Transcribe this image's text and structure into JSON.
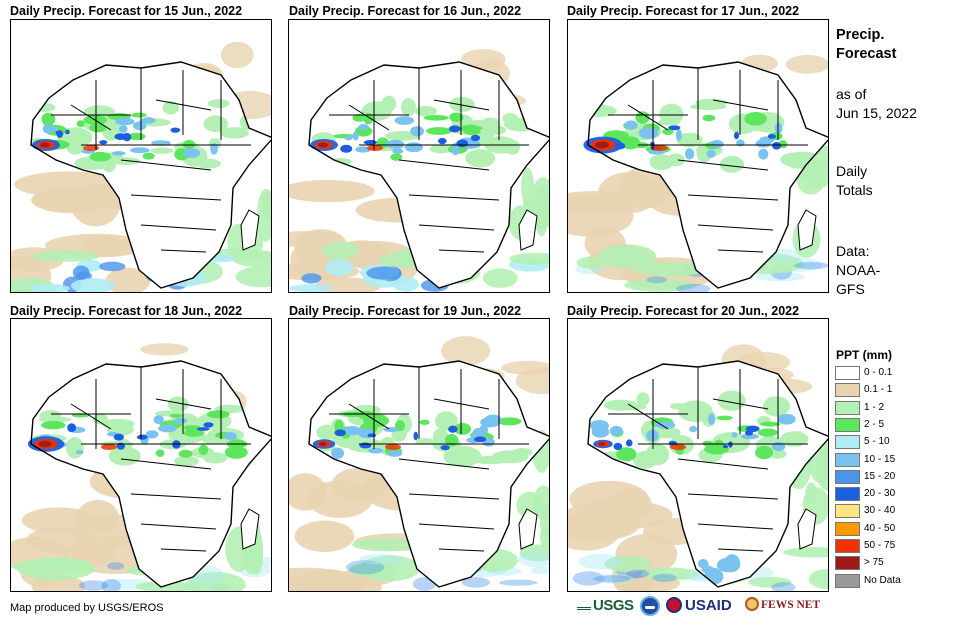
{
  "panels": [
    {
      "title": "Daily Precip. Forecast for 15 Jun., 2022"
    },
    {
      "title": "Daily Precip. Forecast for 16 Jun., 2022"
    },
    {
      "title": "Daily Precip. Forecast for 17 Jun., 2022"
    },
    {
      "title": "Daily Precip. Forecast for 18 Jun., 2022"
    },
    {
      "title": "Daily Precip. Forecast for 19 Jun., 2022"
    },
    {
      "title": "Daily Precip. Forecast for 20 Jun., 2022"
    }
  ],
  "side": {
    "title_line1": "Precip.",
    "title_line2": "Forecast",
    "asof_line1": "as of",
    "asof_line2": "Jun 15, 2022",
    "totals_line1": "Daily",
    "totals_line2": "Totals",
    "data_line1": "Data:",
    "data_line2": "NOAA-",
    "data_line3": "GFS"
  },
  "legend": {
    "title": "PPT (mm)",
    "items": [
      {
        "label": "0 - 0.1",
        "color": "#ffffff"
      },
      {
        "label": "0.1 - 1",
        "color": "#e8d4b0"
      },
      {
        "label": "1 - 2",
        "color": "#b4f0b4"
      },
      {
        "label": "2 - 5",
        "color": "#5ce65c"
      },
      {
        "label": "5 - 10",
        "color": "#b0ecf4"
      },
      {
        "label": "10 - 15",
        "color": "#7ac2f0"
      },
      {
        "label": "15 - 20",
        "color": "#4a94ec"
      },
      {
        "label": "20 - 30",
        "color": "#1c5ee0"
      },
      {
        "label": "30 - 40",
        "color": "#ffe680"
      },
      {
        "label": "40 - 50",
        "color": "#ff9900"
      },
      {
        "label": "50 - 75",
        "color": "#ee3300"
      },
      {
        "label": "> 75",
        "color": "#9e1a1a"
      },
      {
        "label": "No Data",
        "color": "#999999"
      }
    ]
  },
  "footer": {
    "credit": "Map produced by USGS/EROS",
    "logos": [
      "USGS",
      "NOAA",
      "USAID",
      "FEWS NET"
    ]
  }
}
